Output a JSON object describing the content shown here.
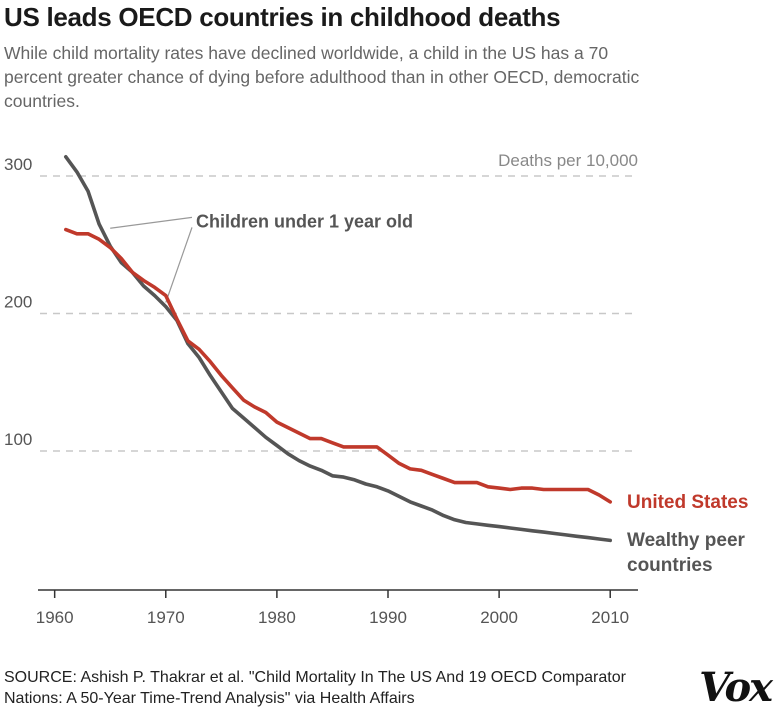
{
  "header": {
    "title": "US leads OECD countries in childhood deaths",
    "subtitle": "While child mortality rates have declined worldwide, a child in the US has a 70 percent greater chance of dying before adulthood than in other OECD, democratic countries."
  },
  "footer": {
    "source": "SOURCE: Ashish P. Thakrar et al. \"Child Mortality In The US And 19 OECD Comparator Nations: A 50-Year Time-Trend Analysis\" via Health Affairs",
    "logo": "Vox"
  },
  "chart_data": {
    "type": "line",
    "title": "US leads OECD countries in childhood deaths",
    "ylabel": "Deaths per 10,000",
    "xlabel": "",
    "xlim": [
      1958.5,
      2012.5
    ],
    "ylim": [
      0,
      320
    ],
    "x_ticks": [
      1960,
      1970,
      1980,
      1990,
      2000,
      2010
    ],
    "y_ticks": [
      100,
      200,
      300
    ],
    "grid": "horizontal dashed",
    "annotation": {
      "text": "Children under 1 year old",
      "targets": [
        [
          1965,
          262
        ],
        [
          1970,
          208
        ]
      ],
      "label_at": [
        1972,
        267
      ]
    },
    "series": [
      {
        "name": "United States",
        "color": "#c0392b",
        "x": [
          1961,
          1962,
          1963,
          1964,
          1965,
          1966,
          1967,
          1968,
          1969,
          1970,
          1971,
          1972,
          1973,
          1974,
          1975,
          1976,
          1977,
          1978,
          1979,
          1980,
          1981,
          1982,
          1983,
          1984,
          1985,
          1986,
          1987,
          1988,
          1989,
          1990,
          1991,
          1992,
          1993,
          1994,
          1995,
          1996,
          1997,
          1998,
          1999,
          2000,
          2001,
          2002,
          2003,
          2004,
          2005,
          2006,
          2007,
          2008,
          2009,
          2010
        ],
        "values": [
          261,
          258,
          258,
          254,
          248,
          240,
          230,
          224,
          219,
          213,
          196,
          180,
          174,
          165,
          155,
          146,
          137,
          132,
          128,
          121,
          117,
          113,
          109,
          109,
          106,
          103,
          103,
          103,
          103,
          97,
          91,
          87,
          86,
          83,
          80,
          77,
          77,
          77,
          74,
          73,
          72,
          73,
          73,
          72,
          72,
          72,
          72,
          72,
          68,
          63
        ]
      },
      {
        "name": "Wealthy peer countries",
        "color": "#555555",
        "x": [
          1961,
          1962,
          1963,
          1964,
          1965,
          1966,
          1967,
          1968,
          1969,
          1970,
          1971,
          1972,
          1973,
          1974,
          1975,
          1976,
          1977,
          1978,
          1979,
          1980,
          1981,
          1982,
          1983,
          1984,
          1985,
          1986,
          1987,
          1988,
          1989,
          1990,
          1991,
          1992,
          1993,
          1994,
          1995,
          1996,
          1997,
          1998,
          1999,
          2000,
          2001,
          2002,
          2003,
          2004,
          2005,
          2006,
          2007,
          2008,
          2009,
          2010
        ],
        "values": [
          314,
          303,
          289,
          265,
          249,
          237,
          230,
          220,
          213,
          205,
          195,
          178,
          168,
          155,
          143,
          131,
          124,
          117,
          110,
          104,
          98,
          93,
          89,
          86,
          82,
          81,
          79,
          76,
          74,
          71,
          67,
          63,
          60,
          57,
          53,
          50,
          48,
          47,
          46,
          45,
          44,
          43,
          42,
          41,
          40,
          39,
          38,
          37,
          36,
          35
        ]
      }
    ],
    "series_labels": [
      {
        "name": "United States",
        "lines": [
          "United States"
        ]
      },
      {
        "name": "Wealthy peer countries",
        "lines": [
          "Wealthy peer",
          "countries"
        ]
      }
    ]
  }
}
